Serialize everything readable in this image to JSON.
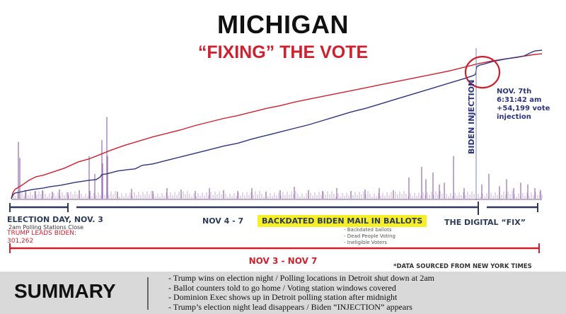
{
  "header": {
    "title": "MICHIGAN",
    "subtitle": "“FIXING” THE VOTE"
  },
  "chart_data": {
    "type": "line",
    "title": "MICHIGAN",
    "subtitle": "“FIXING” THE VOTE",
    "xlabel": "",
    "ylabel": "",
    "grid": false,
    "series": [
      {
        "color": "#d0202e",
        "points": [
          [
            0,
            0
          ],
          [
            2,
            16
          ],
          [
            5,
            26
          ],
          [
            10,
            32
          ],
          [
            15,
            38
          ],
          [
            25,
            52
          ],
          [
            35,
            62
          ],
          [
            45,
            66
          ],
          [
            60,
            76
          ],
          [
            75,
            86
          ],
          [
            95,
            104
          ],
          [
            110,
            112
          ],
          [
            120,
            120
          ],
          [
            140,
            136
          ],
          [
            160,
            150
          ],
          [
            180,
            162
          ],
          [
            200,
            174
          ],
          [
            220,
            184
          ],
          [
            240,
            194
          ],
          [
            260,
            206
          ],
          [
            280,
            216
          ],
          [
            300,
            226
          ],
          [
            320,
            234
          ],
          [
            340,
            244
          ],
          [
            360,
            254
          ],
          [
            380,
            262
          ],
          [
            400,
            272
          ],
          [
            420,
            280
          ],
          [
            440,
            288
          ],
          [
            460,
            296
          ],
          [
            480,
            304
          ],
          [
            500,
            312
          ],
          [
            520,
            320
          ],
          [
            540,
            328
          ],
          [
            560,
            336
          ],
          [
            580,
            344
          ],
          [
            600,
            352
          ],
          [
            620,
            360
          ],
          [
            640,
            370
          ],
          [
            660,
            380
          ],
          [
            680,
            388
          ],
          [
            700,
            394
          ],
          [
            720,
            400
          ],
          [
            740,
            406
          ],
          [
            750,
            408
          ]
        ]
      },
      {
        "color": "#2c3480",
        "points": [
          [
            0,
            0
          ],
          [
            2,
            10
          ],
          [
            5,
            16
          ],
          [
            10,
            18
          ],
          [
            20,
            22
          ],
          [
            30,
            26
          ],
          [
            45,
            30
          ],
          [
            55,
            34
          ],
          [
            70,
            38
          ],
          [
            90,
            46
          ],
          [
            110,
            52
          ],
          [
            120,
            54
          ],
          [
            125,
            60
          ],
          [
            128,
            68
          ],
          [
            135,
            70
          ],
          [
            150,
            78
          ],
          [
            165,
            82
          ],
          [
            175,
            84
          ],
          [
            185,
            94
          ],
          [
            200,
            98
          ],
          [
            220,
            108
          ],
          [
            240,
            118
          ],
          [
            260,
            128
          ],
          [
            280,
            138
          ],
          [
            300,
            148
          ],
          [
            320,
            156
          ],
          [
            340,
            168
          ],
          [
            360,
            178
          ],
          [
            380,
            188
          ],
          [
            400,
            198
          ],
          [
            420,
            208
          ],
          [
            440,
            220
          ],
          [
            460,
            232
          ],
          [
            480,
            244
          ],
          [
            500,
            254
          ],
          [
            520,
            266
          ],
          [
            540,
            278
          ],
          [
            560,
            290
          ],
          [
            580,
            302
          ],
          [
            600,
            314
          ],
          [
            620,
            326
          ],
          [
            640,
            338
          ],
          [
            652,
            346
          ],
          [
            656,
            350
          ],
          [
            657,
            362
          ],
          [
            658,
            372
          ],
          [
            662,
            376
          ],
          [
            670,
            380
          ],
          [
            680,
            386
          ],
          [
            700,
            394
          ],
          [
            715,
            398
          ],
          [
            725,
            402
          ],
          [
            735,
            412
          ],
          [
            740,
            416
          ],
          [
            750,
            418
          ]
        ]
      }
    ],
    "spikes": [
      [
        10,
        160
      ],
      [
        12,
        115
      ],
      [
        20,
        25
      ],
      [
        34,
        22
      ],
      [
        44,
        24
      ],
      [
        58,
        20
      ],
      [
        68,
        26
      ],
      [
        80,
        18
      ],
      [
        96,
        24
      ],
      [
        110,
        120
      ],
      [
        111,
        22
      ],
      [
        118,
        70
      ],
      [
        128,
        165
      ],
      [
        129,
        100
      ],
      [
        135,
        230
      ],
      [
        136,
        120
      ],
      [
        150,
        20
      ],
      [
        170,
        28
      ],
      [
        200,
        22
      ],
      [
        220,
        30
      ],
      [
        240,
        26
      ],
      [
        260,
        22
      ],
      [
        280,
        30
      ],
      [
        300,
        24
      ],
      [
        320,
        22
      ],
      [
        340,
        30
      ],
      [
        360,
        20
      ],
      [
        380,
        24
      ],
      [
        400,
        34
      ],
      [
        420,
        24
      ],
      [
        440,
        22
      ],
      [
        460,
        30
      ],
      [
        480,
        22
      ],
      [
        500,
        26
      ],
      [
        520,
        30
      ],
      [
        540,
        24
      ],
      [
        562,
        60
      ],
      [
        580,
        90
      ],
      [
        586,
        55
      ],
      [
        596,
        74
      ],
      [
        605,
        40
      ],
      [
        612,
        45
      ],
      [
        625,
        120
      ],
      [
        640,
        30
      ],
      [
        665,
        40
      ],
      [
        675,
        70
      ],
      [
        690,
        35
      ],
      [
        700,
        55
      ],
      [
        710,
        30
      ],
      [
        720,
        45
      ],
      [
        730,
        40
      ],
      [
        740,
        30
      ],
      [
        748,
        25
      ]
    ],
    "annotation_marker": {
      "label": "BIDEN INJECTION",
      "x": 657,
      "y": 362
    },
    "callout": [
      "NOV. 7th",
      "6:31:42 am",
      "+54,199 vote",
      "injection"
    ]
  },
  "timeline": {
    "election_day": "ELECTION DAY, NOV. 3",
    "polling_note": "2am Polling Stations Close",
    "trump_leads": "TRUMP LEADS BIDEN:",
    "trump_leads_value": "301,262",
    "middle": "NOV 4 - 7",
    "backdated": "BACKDATED BIDEN MAIL IN BALLOTS",
    "bullets": [
      "- Backdated ballots",
      "- Dead People Voting",
      "- Ineligible Voters"
    ],
    "digital_fix": "THE DIGITAL “FIX”",
    "overall": "NOV 3 - NOV 7",
    "source": "*DATA SOURCED FROM NEW YORK TIMES"
  },
  "summary": {
    "title": "SUMMARY",
    "items": [
      "- Trump wins on election night / Polling locations in Detroit shut down at 2am",
      "- Ballot counters told to go home / Voting station windows covered",
      "- Dominion Exec shows up in Detroit polling station after midnight",
      "- Trump’s election night lead disappears / Biden “INJECTION” appears"
    ]
  }
}
